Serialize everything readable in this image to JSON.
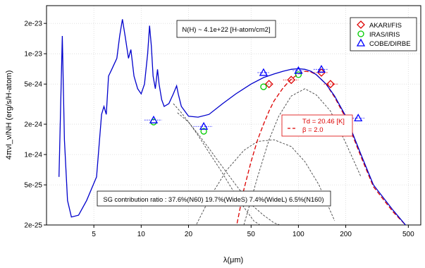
{
  "chart_data": {
    "type": "line",
    "title": "",
    "xlabel": "λ(μm)",
    "ylabel": "4πνI_ν/NH (erg/s/H-atom)",
    "x_scale": "log",
    "y_scale": "log",
    "xlim": [
      2.5,
      600
    ],
    "ylim": [
      2e-25,
      3e-23
    ],
    "x_ticks": [
      5,
      10,
      20,
      50,
      100,
      200,
      500
    ],
    "y_ticks": [
      2e-25,
      5e-25,
      1e-24,
      2e-24,
      5e-24,
      1e-23,
      2e-23
    ],
    "y_tick_labels": [
      "2e-25",
      "5e-25",
      "1e-24",
      "2e-24",
      "5e-24",
      "1e-23",
      "2e-23"
    ],
    "grid": true,
    "legend_position": "top-right",
    "annotations": {
      "column_density": "N(H) ~ 4.1e+22 [H-atom/cm2]",
      "fit_td": "Td = 20.46 [K]",
      "fit_beta": "β = 2.0",
      "sg_ratio": "SG contribution ratio : 37.6%(N60) 19.7%(WideS) 7.4%(WideL) 6.5%(N160)"
    },
    "colors": {
      "model": "#0000cc",
      "modified_bb": "#dd0000",
      "components": "#444444",
      "akari": "#dd0000",
      "iras": "#00cc00",
      "cobe": "#0000ff"
    },
    "series": [
      {
        "name": "AKARI/FIS",
        "marker": "diamond",
        "x": [
          65,
          90,
          140,
          160
        ],
        "y": [
          5e-24,
          5.5e-24,
          6.5e-24,
          5e-24
        ],
        "xerr": [
          [
            60,
            70
          ],
          [
            80,
            100
          ],
          [
            125,
            155
          ],
          [
            145,
            180
          ]
        ]
      },
      {
        "name": "IRAS/IRIS",
        "marker": "circle",
        "x": [
          12,
          25,
          60,
          100
        ],
        "y": [
          2.1e-24,
          1.7e-24,
          4.7e-24,
          6.2e-24
        ]
      },
      {
        "name": "COBE/DIRBE",
        "marker": "triangle",
        "x": [
          12,
          25,
          60,
          100,
          140,
          240
        ],
        "y": [
          2.2e-24,
          1.9e-24,
          6.5e-24,
          6.8e-24,
          7e-24,
          2.3e-24
        ],
        "xerr": [
          [
            10.5,
            13.5
          ],
          [
            21.5,
            28.5
          ],
          [
            55,
            65
          ],
          [
            92,
            108
          ],
          [
            125,
            155
          ],
          [
            215,
            265
          ]
        ]
      }
    ],
    "model_curve": {
      "x": [
        3.0,
        3.15,
        3.25,
        3.4,
        3.6,
        4.0,
        4.5,
        5.2,
        5.6,
        5.8,
        6.0,
        6.2,
        6.5,
        7.0,
        7.3,
        7.6,
        7.9,
        8.3,
        8.6,
        9.0,
        9.5,
        10.0,
        10.5,
        11.0,
        11.3,
        11.6,
        11.9,
        12.3,
        12.7,
        13.0,
        13.5,
        14.0,
        15.0,
        16.0,
        16.8,
        17.2,
        18.0,
        20.0,
        23.0,
        27.0,
        33.0,
        40.0,
        50.0,
        60.0,
        70.0,
        80.0,
        90.0,
        100.0,
        110.0,
        120.0,
        130.0,
        150.0,
        170.0,
        200.0,
        250.0,
        300.0,
        400.0,
        480.0
      ],
      "y": [
        6e-25,
        1.5e-23,
        1.4e-24,
        3.5e-25,
        2.4e-25,
        2.5e-25,
        3.5e-25,
        6e-25,
        2.5e-24,
        3e-24,
        2.5e-24,
        6e-24,
        7e-24,
        9e-24,
        1.5e-23,
        2.2e-23,
        1.5e-23,
        9e-24,
        1.1e-23,
        6e-24,
        4.5e-24,
        4e-24,
        5e-24,
        1e-23,
        1.9e-23,
        1.2e-23,
        6e-24,
        4.5e-24,
        7e-24,
        5e-24,
        3.5e-24,
        3e-24,
        3.2e-24,
        4e-24,
        4.8e-24,
        4e-24,
        3e-24,
        2.4e-24,
        2.35e-24,
        2.5e-24,
        3.2e-24,
        4e-24,
        5e-24,
        5.8e-24,
        6.3e-24,
        6.7e-24,
        7e-24,
        7.1e-24,
        7e-24,
        6.7e-24,
        6.2e-24,
        5e-24,
        3.8e-24,
        2.4e-24,
        1e-24,
        5e-25,
        2.8e-25,
        2e-25
      ]
    },
    "modified_blackbody": {
      "x": [
        40,
        45,
        50,
        55,
        60,
        65,
        70,
        80,
        90,
        100,
        110,
        120,
        130,
        150,
        170,
        200,
        250,
        300,
        400,
        480
      ],
      "y": [
        1.8e-25,
        4.5e-25,
        8.5e-25,
        1.4e-24,
        2e-24,
        2.7e-24,
        3.4e-24,
        4.6e-24,
        5.6e-24,
        6.3e-24,
        6.7e-24,
        6.6e-24,
        6.2e-24,
        5e-24,
        3.7e-24,
        2.3e-24,
        9.5e-25,
        4.8e-25,
        2.7e-25,
        2e-25
      ]
    },
    "component_curves": [
      {
        "x": [
          16,
          18,
          20,
          23,
          27,
          32,
          38,
          45,
          52,
          60
        ],
        "y": [
          3.2e-24,
          2.6e-24,
          2.1e-24,
          1.55e-24,
          1.05e-24,
          7e-25,
          4.5e-25,
          3e-25,
          2.2e-25,
          1.9e-25
        ]
      },
      {
        "x": [
          17,
          20,
          23,
          27,
          32,
          40,
          50,
          60,
          70,
          80,
          90
        ],
        "y": [
          2.6e-24,
          2.1e-24,
          1.6e-24,
          1.15e-24,
          8e-25,
          5e-25,
          3.2e-25,
          2.5e-25,
          2.1e-25,
          1.95e-25,
          1.9e-25
        ]
      },
      {
        "x": [
          22,
          28,
          35,
          45,
          55,
          70,
          90,
          110,
          135,
          170
        ],
        "y": [
          1.9e-25,
          4e-25,
          7e-25,
          1.1e-24,
          1.35e-24,
          1.4e-24,
          1.2e-24,
          8.5e-25,
          5e-25,
          2.2e-25
        ]
      },
      {
        "x": [
          45,
          55,
          65,
          75,
          90,
          110,
          130,
          160,
          200,
          250
        ],
        "y": [
          2e-25,
          6e-25,
          1.4e-24,
          2.4e-24,
          3.8e-24,
          4.5e-24,
          3.9e-24,
          2.7e-24,
          1.3e-24,
          6e-25
        ]
      }
    ]
  }
}
